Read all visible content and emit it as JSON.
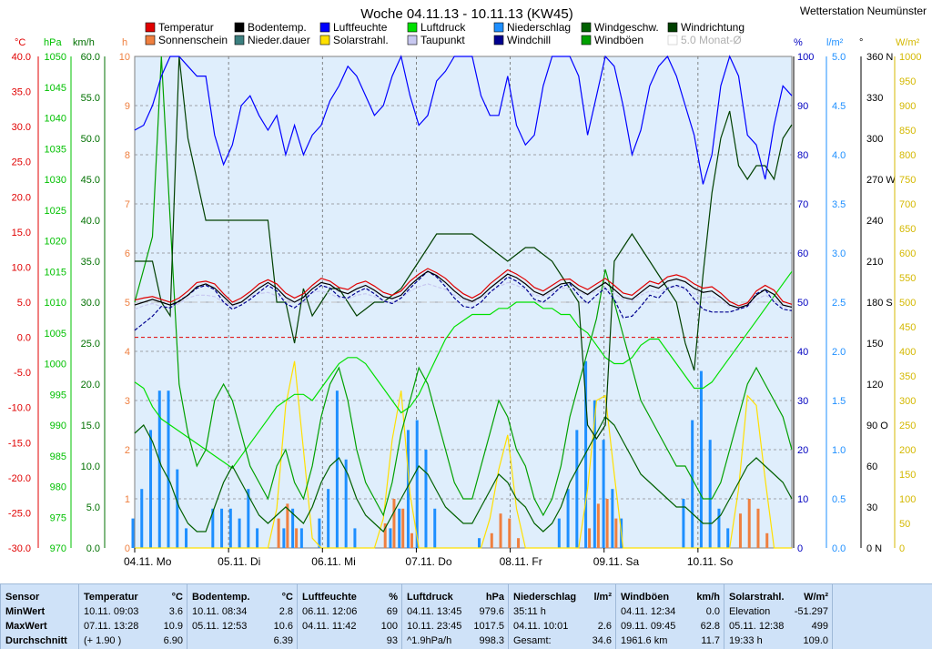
{
  "title": "Woche 04.11.13 - 10.11.13 (KW45)",
  "station": "Wetterstation Neumünster",
  "axes_units": {
    "temp": "°C",
    "hpa": "hPa",
    "kmh": "km/h",
    "h": "h",
    "pct": "%",
    "lm2": "l/m²",
    "deg": "°",
    "wm2": "W/m²"
  },
  "legend": [
    {
      "label": "Temperatur",
      "color": "#e00000"
    },
    {
      "label": "Sonnenschein",
      "color": "#ef7f3f"
    },
    {
      "label": "Bodentemp.",
      "color": "#000000"
    },
    {
      "label": "Nieder.dauer",
      "color": "#3c7f7f"
    },
    {
      "label": "Luftfeuchte",
      "color": "#0000ff"
    },
    {
      "label": "Solarstrahl.",
      "color": "#ffe000"
    },
    {
      "label": "Luftdruck",
      "color": "#00e000"
    },
    {
      "label": "Taupunkt",
      "color": "#c8c8f0"
    },
    {
      "label": "Niederschlag",
      "color": "#1e8fff"
    },
    {
      "label": "Windchill",
      "color": "#00008f"
    },
    {
      "label": "Windgeschw.",
      "color": "#006000"
    },
    {
      "label": "Windböen",
      "color": "#00a000"
    },
    {
      "label": "Windrichtung",
      "color": "#004000"
    },
    {
      "label": "5.0 Monat-Ø",
      "color": "#c0c0c0"
    }
  ],
  "chart_data": {
    "type": "line",
    "x_range": [
      "04.11.",
      "11.11."
    ],
    "x_ticks": [
      "04.11. Mo",
      "05.11. Di",
      "06.11. Mi",
      "07.11. Do",
      "08.11. Fr",
      "09.11. Sa",
      "10.11. So"
    ],
    "axes": {
      "temp": {
        "min": -30,
        "max": 40,
        "step": 5
      },
      "hpa": {
        "min": 970,
        "max": 1050,
        "step": 5
      },
      "kmh": {
        "min": 0,
        "max": 60,
        "step": 5
      },
      "h": {
        "min": 0,
        "max": 10,
        "step": 1
      },
      "pct": {
        "min": 0,
        "max": 100,
        "step": 10
      },
      "lm2": {
        "min": 0,
        "max": 5,
        "step": 0.5
      },
      "deg": {
        "ticks": [
          "0 N",
          "30",
          "60",
          "90 O",
          "120",
          "150",
          "180 S",
          "210",
          "240",
          "270 W",
          "300",
          "330",
          "360 N"
        ]
      },
      "wm2": {
        "min": 0,
        "max": 1000,
        "step": 50
      }
    },
    "grid": true,
    "series": [
      {
        "name": "Luftfeuchte",
        "axis": "pct",
        "color": "#0000ff",
        "values": [
          85,
          86,
          90,
          96,
          100,
          100,
          98,
          96,
          96,
          84,
          78,
          82,
          90,
          92,
          88,
          85,
          88,
          80,
          86,
          80,
          84,
          86,
          91,
          94,
          98,
          96,
          92,
          88,
          90,
          96,
          100,
          92,
          86,
          88,
          95,
          97,
          100,
          100,
          100,
          92,
          88,
          88,
          96,
          86,
          82,
          84,
          94,
          100,
          100,
          100,
          96,
          84,
          92,
          100,
          98,
          90,
          80,
          85,
          94,
          98,
          100,
          96,
          90,
          84,
          74,
          80,
          94,
          100,
          96,
          84,
          82,
          75,
          86,
          94,
          92
        ]
      },
      {
        "name": "Temperatur",
        "axis": "temp",
        "color": "#e00000",
        "values": [
          5.3,
          5.6,
          5.8,
          5.4,
          5.0,
          5.6,
          6.6,
          7.8,
          8.0,
          7.6,
          6.2,
          5.0,
          5.6,
          6.5,
          7.6,
          8.2,
          7.6,
          6.3,
          5.6,
          6.2,
          7.4,
          8.4,
          8.0,
          7.1,
          6.8,
          7.6,
          8.0,
          7.3,
          6.4,
          6.0,
          6.6,
          8.0,
          9.0,
          9.8,
          9.2,
          8.4,
          7.2,
          6.2,
          5.6,
          6.3,
          7.6,
          8.6,
          9.6,
          9.0,
          8.2,
          7.1,
          6.6,
          7.4,
          8.2,
          8.3,
          7.4,
          6.8,
          7.6,
          8.4,
          7.4,
          6.3,
          6.0,
          7.0,
          8.0,
          7.6,
          8.6,
          8.9,
          8.5,
          7.6,
          7.0,
          7.2,
          6.3,
          5.1,
          4.5,
          4.9,
          6.6,
          7.4,
          6.7,
          5.1,
          4.7
        ]
      },
      {
        "name": "Bodentemp.",
        "axis": "temp",
        "color": "#000000",
        "values": [
          4.6,
          5.0,
          5.4,
          5.0,
          4.6,
          5.1,
          6.0,
          7.2,
          7.6,
          7.0,
          5.8,
          4.6,
          5.0,
          6.0,
          7.0,
          7.8,
          7.0,
          5.7,
          5.0,
          5.7,
          6.9,
          7.8,
          7.5,
          6.6,
          6.2,
          6.9,
          7.4,
          6.7,
          5.8,
          5.5,
          6.0,
          7.4,
          8.5,
          9.4,
          8.8,
          7.8,
          6.6,
          5.6,
          5.1,
          5.8,
          7.0,
          8.0,
          9.0,
          8.5,
          7.6,
          6.5,
          6.0,
          6.8,
          7.6,
          7.8,
          6.8,
          6.1,
          7.0,
          7.8,
          6.8,
          5.7,
          5.4,
          6.4,
          7.4,
          7.0,
          8.0,
          8.3,
          7.9,
          7.0,
          6.4,
          6.6,
          5.7,
          4.6,
          4.2,
          4.6,
          6.0,
          6.8,
          6.1,
          4.6,
          4.3
        ]
      },
      {
        "name": "Taupunkt",
        "axis": "temp",
        "color": "#c8c8f0",
        "values": [
          4.0,
          4.5,
          4.8,
          4.4,
          4.2,
          4.8,
          5.6,
          6.0,
          6.0,
          5.8,
          5.0,
          4.4,
          5.0,
          5.8,
          6.2,
          6.4,
          5.9,
          5.3,
          5.0,
          5.6,
          6.4,
          6.6,
          6.2,
          5.6,
          5.4,
          6.0,
          6.2,
          5.8,
          5.2,
          5.0,
          5.6,
          6.6,
          7.2,
          7.6,
          7.2,
          6.8,
          6.0,
          5.4,
          5.0,
          5.6,
          6.4,
          7.2,
          7.8,
          7.4,
          6.8,
          6.0,
          5.8,
          6.4,
          7.0,
          7.0,
          6.4,
          6.0,
          6.6,
          7.0,
          6.2,
          5.4,
          5.2,
          6.0,
          6.6,
          6.4,
          7.0,
          7.2,
          6.8,
          6.2,
          5.6,
          5.8,
          5.2,
          4.4,
          4.0,
          4.4,
          5.4,
          6.0,
          5.4,
          4.4,
          4.2
        ]
      },
      {
        "name": "Windchill",
        "axis": "temp",
        "color": "#00008f",
        "values": [
          1.0,
          2.0,
          3.0,
          4.4,
          4.2,
          5.2,
          6.0,
          7.0,
          7.4,
          6.8,
          5.0,
          4.0,
          4.6,
          5.4,
          6.4,
          7.4,
          6.6,
          4.8,
          4.2,
          5.2,
          6.4,
          7.4,
          7.0,
          5.8,
          5.6,
          6.4,
          7.0,
          6.2,
          5.2,
          4.8,
          5.6,
          7.0,
          8.2,
          9.4,
          8.6,
          7.2,
          5.6,
          4.4,
          4.2,
          5.0,
          6.4,
          7.4,
          8.6,
          8.0,
          7.0,
          5.4,
          5.0,
          6.0,
          7.2,
          7.6,
          6.0,
          4.8,
          6.0,
          7.0,
          5.4,
          2.8,
          3.0,
          4.4,
          6.0,
          5.6,
          7.0,
          7.4,
          7.0,
          5.4,
          4.0,
          3.6,
          3.6,
          3.6,
          4.0,
          4.4,
          6.2,
          6.8,
          5.0,
          4.0,
          3.8
        ]
      },
      {
        "name": "Luftdruck",
        "axis": "hpa",
        "color": "#00e000",
        "values": [
          997,
          996,
          993,
          991,
          990,
          989,
          988,
          987,
          986,
          985,
          984,
          983,
          985,
          987,
          989,
          991,
          993,
          994,
          995,
          995,
          994,
          996,
          998,
          1000,
          1001,
          1001,
          1000,
          998,
          996,
          994,
          992,
          993,
          995,
          998,
          1001,
          1004,
          1006,
          1007,
          1008,
          1008,
          1008,
          1009,
          1009,
          1010,
          1010,
          1010,
          1009,
          1009,
          1008,
          1008,
          1006,
          1005,
          1003,
          1001,
          1000,
          1000,
          1001,
          1003,
          1004,
          1004,
          1002,
          1000,
          998,
          996,
          996,
          997,
          999,
          1001,
          1003,
          1005,
          1007,
          1009,
          1011,
          1013,
          1015
        ]
      },
      {
        "name": "Windgeschw.",
        "axis": "kmh",
        "color": "#006000",
        "values": [
          14,
          15,
          13,
          10,
          8,
          5,
          3,
          2,
          2,
          5,
          8,
          10,
          8,
          6,
          4,
          3,
          4,
          5,
          4,
          3,
          5,
          8,
          10,
          11,
          9,
          6,
          4,
          3,
          2,
          4,
          6,
          8,
          10,
          9,
          7,
          5,
          4,
          3,
          3,
          5,
          7,
          9,
          8,
          6,
          5,
          3,
          2,
          3,
          5,
          8,
          10,
          12,
          14,
          16,
          15,
          13,
          11,
          9,
          8,
          7,
          6,
          5,
          5,
          4,
          3,
          3,
          4,
          6,
          8,
          10,
          11,
          10,
          9,
          8,
          6
        ]
      },
      {
        "name": "Windböen",
        "axis": "kmh",
        "color": "#00a000",
        "values": [
          30,
          34,
          38,
          60,
          40,
          20,
          14,
          10,
          12,
          18,
          20,
          18,
          14,
          10,
          8,
          6,
          10,
          12,
          8,
          6,
          10,
          16,
          20,
          22,
          18,
          12,
          8,
          6,
          4,
          8,
          14,
          18,
          22,
          20,
          16,
          12,
          8,
          6,
          6,
          10,
          14,
          18,
          16,
          12,
          10,
          6,
          4,
          6,
          10,
          16,
          20,
          24,
          28,
          34,
          30,
          26,
          22,
          18,
          16,
          14,
          12,
          10,
          10,
          8,
          6,
          6,
          8,
          12,
          16,
          20,
          22,
          20,
          18,
          16,
          12
        ]
      },
      {
        "name": "Windrichtung",
        "axis": "deg",
        "color": "#004000",
        "values": [
          210,
          210,
          210,
          180,
          170,
          360,
          300,
          270,
          240,
          240,
          240,
          240,
          240,
          240,
          240,
          240,
          180,
          180,
          150,
          190,
          170,
          180,
          190,
          190,
          180,
          170,
          175,
          180,
          180,
          185,
          190,
          200,
          210,
          220,
          230,
          230,
          230,
          230,
          230,
          225,
          220,
          215,
          210,
          215,
          220,
          220,
          215,
          210,
          200,
          190,
          180,
          90,
          80,
          90,
          210,
          220,
          230,
          220,
          210,
          200,
          190,
          180,
          150,
          130,
          200,
          260,
          300,
          320,
          280,
          270,
          280,
          280,
          270,
          300,
          310
        ]
      },
      {
        "name": "Niederschlag",
        "axis": "lm2",
        "color": "#1e8fff",
        "values": [
          0.3,
          0.6,
          1.2,
          1.6,
          1.6,
          0.8,
          0.2,
          0,
          0,
          0.4,
          0.4,
          0.4,
          0.3,
          0.6,
          0.2,
          0,
          0,
          0.2,
          0.4,
          0.2,
          0,
          0.3,
          0.6,
          1.6,
          0.9,
          0.2,
          0,
          0,
          0,
          0.2,
          0.4,
          1.2,
          1.3,
          1.0,
          0.4,
          0,
          0,
          0,
          0,
          0.1,
          0,
          0,
          0,
          0,
          0,
          0,
          0,
          0,
          0.3,
          0.6,
          1.2,
          1.9,
          1.5,
          1.1,
          0.6,
          0.3,
          0,
          0,
          0,
          0,
          0,
          0,
          0.5,
          1.3,
          1.8,
          1.1,
          0.4,
          0.2,
          0,
          0,
          0,
          0,
          0,
          0,
          0
        ]
      },
      {
        "name": "Sonnenschein",
        "axis": "h",
        "color": "#ef7f3f",
        "values": [
          0,
          0,
          0,
          0,
          0,
          0,
          0,
          0,
          0,
          0,
          0,
          0,
          0,
          0,
          0,
          0,
          0.6,
          0.9,
          0.4,
          0,
          0,
          0,
          0,
          0,
          0,
          0,
          0,
          0,
          0.5,
          1.0,
          0.8,
          0.3,
          0,
          0,
          0,
          0,
          0,
          0,
          0,
          0,
          0.3,
          0.7,
          0.6,
          0.2,
          0,
          0,
          0,
          0,
          0,
          0,
          0,
          0.4,
          0.9,
          1.0,
          0.6,
          0,
          0,
          0,
          0,
          0,
          0,
          0,
          0,
          0,
          0,
          0,
          0,
          0,
          0.7,
          1.0,
          0.8,
          0.3,
          0,
          0,
          0
        ]
      },
      {
        "name": "Solarstrahl.",
        "axis": "wm2",
        "color": "#ffe000",
        "values": [
          0,
          0,
          0,
          0,
          0,
          0,
          0,
          0,
          0,
          0,
          0,
          0,
          0,
          0,
          0,
          0,
          80,
          290,
          380,
          200,
          20,
          0,
          0,
          0,
          0,
          0,
          0,
          0,
          60,
          220,
          320,
          110,
          0,
          0,
          0,
          0,
          0,
          0,
          0,
          0,
          60,
          160,
          230,
          80,
          0,
          0,
          0,
          0,
          0,
          0,
          0,
          120,
          300,
          310,
          150,
          0,
          0,
          0,
          0,
          0,
          0,
          0,
          0,
          0,
          0,
          0,
          0,
          0,
          120,
          310,
          290,
          140,
          0,
          0,
          0
        ]
      }
    ]
  },
  "stats": [
    {
      "title": "Sensor",
      "unit": "",
      "rows": [
        [
          "MinWert",
          "",
          ""
        ],
        [
          "MaxWert",
          "",
          ""
        ],
        [
          "Durchschnitt",
          "",
          ""
        ]
      ]
    },
    {
      "title": "Temperatur",
      "unit": "°C",
      "rows": [
        [
          "10.11.  09:03",
          "",
          "3.6"
        ],
        [
          "07.11.  13:28",
          "",
          "10.9"
        ],
        [
          "(+ 1.90 )",
          "",
          "6.90"
        ]
      ]
    },
    {
      "title": "Bodentemp.",
      "unit": "°C",
      "rows": [
        [
          "10.11.  08:34",
          "",
          "2.8"
        ],
        [
          "05.11.  12:53",
          "",
          "10.6"
        ],
        [
          "",
          "",
          "6.39"
        ]
      ]
    },
    {
      "title": "Luftfeuchte",
      "unit": "%",
      "rows": [
        [
          "06.11.  12:06",
          "",
          "69"
        ],
        [
          "04.11.  11:42",
          "",
          "100"
        ],
        [
          "",
          "",
          "93"
        ]
      ]
    },
    {
      "title": "Luftdruck",
      "unit": "hPa",
      "rows": [
        [
          "04.11.  13:45",
          "",
          "979.6"
        ],
        [
          "10.11.  23:45",
          "",
          "1017.5"
        ],
        [
          "^1.9hPa/h",
          "",
          "998.3"
        ]
      ]
    },
    {
      "title": "Niederschlag",
      "unit": "l/m²",
      "rows": [
        [
          "35:11 h",
          "",
          ""
        ],
        [
          "04.11.  10:01",
          "",
          "2.6"
        ],
        [
          "Gesamt:",
          "",
          "34.6"
        ]
      ]
    },
    {
      "title": "Windböen",
      "unit": "km/h",
      "rows": [
        [
          "04.11.  12:34",
          "",
          "0.0"
        ],
        [
          "09.11.  09:45",
          "",
          "62.8"
        ],
        [
          "1961.6 km",
          "",
          "11.7"
        ]
      ]
    },
    {
      "title": "Solarstrahl.",
      "unit": "W/m²",
      "rows": [
        [
          "Elevation",
          "",
          "-51.297"
        ],
        [
          "05.11.  12:38",
          "",
          "499"
        ],
        [
          "19:33 h",
          "",
          "109.0"
        ]
      ]
    }
  ]
}
